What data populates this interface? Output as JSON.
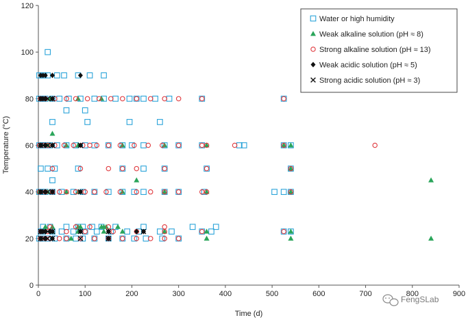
{
  "chart_data": {
    "type": "scatter",
    "title": "",
    "xlabel": "Time (d)",
    "ylabel": "Temperature (°C)",
    "xlim": [
      0,
      900
    ],
    "ylim": [
      0,
      120
    ],
    "xticks": [
      0,
      100,
      200,
      300,
      400,
      500,
      600,
      700,
      800,
      900
    ],
    "yticks": [
      0,
      20,
      40,
      60,
      80,
      100,
      120
    ],
    "grid": false,
    "legend_position": "top-right",
    "series": [
      {
        "name": "Water or high humidity",
        "marker": "open-square",
        "color": "#29a3d9",
        "points": [
          [
            20,
            100
          ],
          [
            2,
            90
          ],
          [
            8,
            90
          ],
          [
            12,
            90
          ],
          [
            20,
            90
          ],
          [
            40,
            90
          ],
          [
            55,
            90
          ],
          [
            85,
            90
          ],
          [
            110,
            90
          ],
          [
            140,
            90
          ],
          [
            2,
            80
          ],
          [
            8,
            80
          ],
          [
            15,
            80
          ],
          [
            30,
            80
          ],
          [
            45,
            80
          ],
          [
            65,
            80
          ],
          [
            90,
            80
          ],
          [
            120,
            80
          ],
          [
            140,
            80
          ],
          [
            165,
            80
          ],
          [
            195,
            80
          ],
          [
            210,
            80
          ],
          [
            225,
            80
          ],
          [
            250,
            80
          ],
          [
            280,
            80
          ],
          [
            350,
            80
          ],
          [
            525,
            80
          ],
          [
            60,
            75
          ],
          [
            100,
            75
          ],
          [
            30,
            70
          ],
          [
            105,
            70
          ],
          [
            195,
            70
          ],
          [
            260,
            70
          ],
          [
            2,
            60
          ],
          [
            8,
            60
          ],
          [
            15,
            60
          ],
          [
            25,
            60
          ],
          [
            40,
            60
          ],
          [
            60,
            60
          ],
          [
            80,
            60
          ],
          [
            100,
            60
          ],
          [
            120,
            60
          ],
          [
            150,
            60
          ],
          [
            180,
            60
          ],
          [
            200,
            60
          ],
          [
            225,
            60
          ],
          [
            270,
            60
          ],
          [
            300,
            60
          ],
          [
            350,
            60
          ],
          [
            430,
            60
          ],
          [
            440,
            60
          ],
          [
            525,
            60
          ],
          [
            540,
            60
          ],
          [
            5,
            50
          ],
          [
            20,
            50
          ],
          [
            35,
            50
          ],
          [
            85,
            50
          ],
          [
            180,
            50
          ],
          [
            225,
            50
          ],
          [
            270,
            50
          ],
          [
            360,
            50
          ],
          [
            540,
            50
          ],
          [
            30,
            45
          ],
          [
            2,
            40
          ],
          [
            8,
            40
          ],
          [
            15,
            40
          ],
          [
            30,
            40
          ],
          [
            50,
            40
          ],
          [
            75,
            40
          ],
          [
            95,
            40
          ],
          [
            120,
            40
          ],
          [
            150,
            40
          ],
          [
            180,
            40
          ],
          [
            205,
            40
          ],
          [
            225,
            40
          ],
          [
            270,
            40
          ],
          [
            300,
            40
          ],
          [
            355,
            40
          ],
          [
            505,
            40
          ],
          [
            525,
            40
          ],
          [
            540,
            40
          ],
          [
            10,
            25
          ],
          [
            25,
            25
          ],
          [
            60,
            25
          ],
          [
            85,
            25
          ],
          [
            95,
            25
          ],
          [
            115,
            25
          ],
          [
            135,
            25
          ],
          [
            165,
            25
          ],
          [
            225,
            25
          ],
          [
            330,
            25
          ],
          [
            380,
            25
          ],
          [
            5,
            23
          ],
          [
            10,
            23
          ],
          [
            30,
            23
          ],
          [
            50,
            23
          ],
          [
            75,
            23
          ],
          [
            100,
            23
          ],
          [
            125,
            23
          ],
          [
            155,
            23
          ],
          [
            190,
            23
          ],
          [
            215,
            23
          ],
          [
            260,
            23
          ],
          [
            285,
            23
          ],
          [
            350,
            23
          ],
          [
            370,
            23
          ],
          [
            525,
            23
          ],
          [
            540,
            23
          ],
          [
            2,
            20
          ],
          [
            8,
            20
          ],
          [
            20,
            20
          ],
          [
            35,
            20
          ],
          [
            60,
            20
          ],
          [
            80,
            20
          ],
          [
            95,
            20
          ],
          [
            120,
            20
          ],
          [
            150,
            20
          ],
          [
            180,
            20
          ],
          [
            205,
            20
          ],
          [
            230,
            20
          ],
          [
            265,
            20
          ],
          [
            300,
            20
          ]
        ]
      },
      {
        "name": "Weak alkaline solution (pH ≈ 8)",
        "marker": "filled-triangle",
        "color": "#2aa55a",
        "points": [
          [
            25,
            80
          ],
          [
            85,
            80
          ],
          [
            135,
            80
          ],
          [
            30,
            65
          ],
          [
            5,
            60
          ],
          [
            20,
            60
          ],
          [
            60,
            60
          ],
          [
            85,
            60
          ],
          [
            180,
            60
          ],
          [
            270,
            60
          ],
          [
            360,
            60
          ],
          [
            525,
            60
          ],
          [
            540,
            60
          ],
          [
            210,
            45
          ],
          [
            540,
            50
          ],
          [
            840,
            45
          ],
          [
            2,
            40
          ],
          [
            20,
            40
          ],
          [
            60,
            40
          ],
          [
            85,
            40
          ],
          [
            180,
            40
          ],
          [
            270,
            40
          ],
          [
            360,
            40
          ],
          [
            540,
            40
          ],
          [
            15,
            25
          ],
          [
            30,
            25
          ],
          [
            85,
            25
          ],
          [
            90,
            25
          ],
          [
            135,
            25
          ],
          [
            140,
            25
          ],
          [
            145,
            25
          ],
          [
            170,
            25
          ],
          [
            5,
            23
          ],
          [
            30,
            23
          ],
          [
            85,
            23
          ],
          [
            140,
            23
          ],
          [
            180,
            23
          ],
          [
            270,
            23
          ],
          [
            360,
            23
          ],
          [
            540,
            23
          ],
          [
            70,
            20
          ],
          [
            360,
            20
          ],
          [
            540,
            20
          ],
          [
            840,
            20
          ]
        ]
      },
      {
        "name": "Strong alkaline solution (pH ≈ 13)",
        "marker": "open-circle",
        "color": "#e0393e",
        "points": [
          [
            5,
            80
          ],
          [
            15,
            80
          ],
          [
            35,
            80
          ],
          [
            60,
            80
          ],
          [
            80,
            80
          ],
          [
            105,
            80
          ],
          [
            130,
            80
          ],
          [
            155,
            80
          ],
          [
            180,
            80
          ],
          [
            210,
            80
          ],
          [
            240,
            80
          ],
          [
            270,
            80
          ],
          [
            300,
            80
          ],
          [
            350,
            80
          ],
          [
            525,
            80
          ],
          [
            2,
            60
          ],
          [
            10,
            60
          ],
          [
            20,
            60
          ],
          [
            35,
            60
          ],
          [
            55,
            60
          ],
          [
            75,
            60
          ],
          [
            95,
            60
          ],
          [
            110,
            60
          ],
          [
            125,
            60
          ],
          [
            150,
            60
          ],
          [
            175,
            60
          ],
          [
            205,
            60
          ],
          [
            235,
            60
          ],
          [
            265,
            60
          ],
          [
            300,
            60
          ],
          [
            350,
            60
          ],
          [
            360,
            60
          ],
          [
            420,
            60
          ],
          [
            525,
            60
          ],
          [
            720,
            60
          ],
          [
            30,
            50
          ],
          [
            90,
            50
          ],
          [
            150,
            50
          ],
          [
            180,
            50
          ],
          [
            210,
            50
          ],
          [
            270,
            50
          ],
          [
            360,
            50
          ],
          [
            540,
            50
          ],
          [
            2,
            40
          ],
          [
            15,
            40
          ],
          [
            30,
            40
          ],
          [
            45,
            40
          ],
          [
            60,
            40
          ],
          [
            80,
            40
          ],
          [
            100,
            40
          ],
          [
            120,
            40
          ],
          [
            145,
            40
          ],
          [
            175,
            40
          ],
          [
            210,
            40
          ],
          [
            240,
            40
          ],
          [
            270,
            40
          ],
          [
            300,
            40
          ],
          [
            350,
            40
          ],
          [
            360,
            40
          ],
          [
            540,
            40
          ],
          [
            25,
            25
          ],
          [
            80,
            25
          ],
          [
            110,
            25
          ],
          [
            150,
            25
          ],
          [
            270,
            25
          ],
          [
            5,
            23
          ],
          [
            20,
            23
          ],
          [
            60,
            23
          ],
          [
            100,
            23
          ],
          [
            160,
            23
          ],
          [
            210,
            23
          ],
          [
            270,
            23
          ],
          [
            350,
            23
          ],
          [
            525,
            23
          ],
          [
            5,
            20
          ],
          [
            15,
            20
          ],
          [
            25,
            20
          ],
          [
            45,
            20
          ],
          [
            60,
            20
          ],
          [
            90,
            20
          ],
          [
            120,
            20
          ],
          [
            150,
            20
          ],
          [
            180,
            20
          ],
          [
            210,
            20
          ],
          [
            240,
            20
          ],
          [
            270,
            20
          ],
          [
            300,
            20
          ]
        ]
      },
      {
        "name": "Weak acidic solution (pH ≈ 5)",
        "marker": "filled-diamond",
        "color": "#111111",
        "points": [
          [
            5,
            90
          ],
          [
            10,
            90
          ],
          [
            15,
            90
          ],
          [
            30,
            90
          ],
          [
            90,
            90
          ],
          [
            5,
            80
          ],
          [
            10,
            80
          ],
          [
            15,
            80
          ],
          [
            30,
            80
          ],
          [
            5,
            60
          ],
          [
            15,
            60
          ],
          [
            30,
            60
          ],
          [
            90,
            60
          ],
          [
            5,
            40
          ],
          [
            15,
            40
          ],
          [
            30,
            40
          ],
          [
            90,
            40
          ],
          [
            5,
            23
          ],
          [
            10,
            23
          ],
          [
            15,
            23
          ],
          [
            25,
            23
          ],
          [
            30,
            23
          ],
          [
            90,
            23
          ],
          [
            150,
            23
          ],
          [
            210,
            23
          ],
          [
            225,
            23
          ],
          [
            5,
            20
          ],
          [
            15,
            20
          ],
          [
            30,
            20
          ],
          [
            150,
            20
          ]
        ]
      },
      {
        "name": "Strong acidic solution (pH ≈ 3)",
        "marker": "x-cross",
        "color": "#111111",
        "points": [
          [
            5,
            80
          ],
          [
            10,
            80
          ],
          [
            20,
            80
          ],
          [
            30,
            80
          ],
          [
            5,
            60
          ],
          [
            10,
            60
          ],
          [
            20,
            60
          ],
          [
            30,
            60
          ],
          [
            90,
            60
          ],
          [
            5,
            40
          ],
          [
            10,
            40
          ],
          [
            20,
            40
          ],
          [
            30,
            40
          ],
          [
            90,
            40
          ],
          [
            5,
            23
          ],
          [
            10,
            23
          ],
          [
            20,
            23
          ],
          [
            30,
            23
          ],
          [
            90,
            23
          ],
          [
            150,
            23
          ],
          [
            225,
            23
          ],
          [
            5,
            20
          ],
          [
            10,
            20
          ],
          [
            20,
            20
          ],
          [
            30,
            20
          ],
          [
            90,
            20
          ],
          [
            150,
            20
          ]
        ]
      }
    ]
  },
  "watermark": {
    "icon": "wechat-icon",
    "text": "FengSLab"
  }
}
